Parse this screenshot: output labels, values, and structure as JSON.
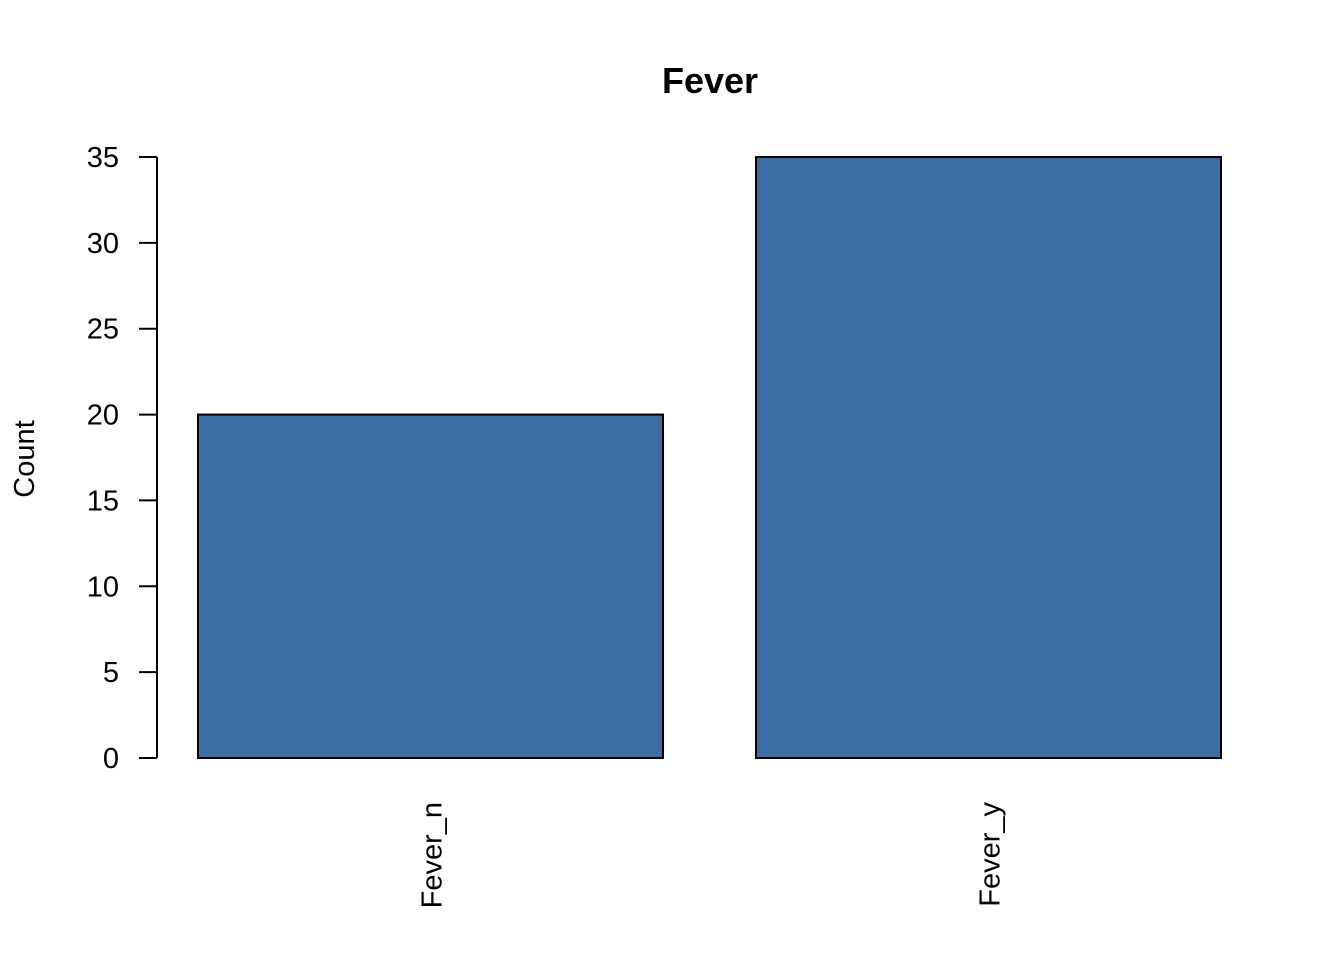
{
  "chart_data": {
    "type": "bar",
    "title": "Fever",
    "xlabel": "",
    "ylabel": "Count",
    "categories": [
      "Fever_n",
      "Fever_y"
    ],
    "values": [
      20,
      35
    ],
    "ylim": [
      0,
      35
    ],
    "yticks": [
      0,
      5,
      10,
      15,
      20,
      25,
      30,
      35
    ],
    "bar_color": "#3A6EA5",
    "grid": false,
    "legend": "none",
    "x_tick_orientation": "vertical"
  }
}
